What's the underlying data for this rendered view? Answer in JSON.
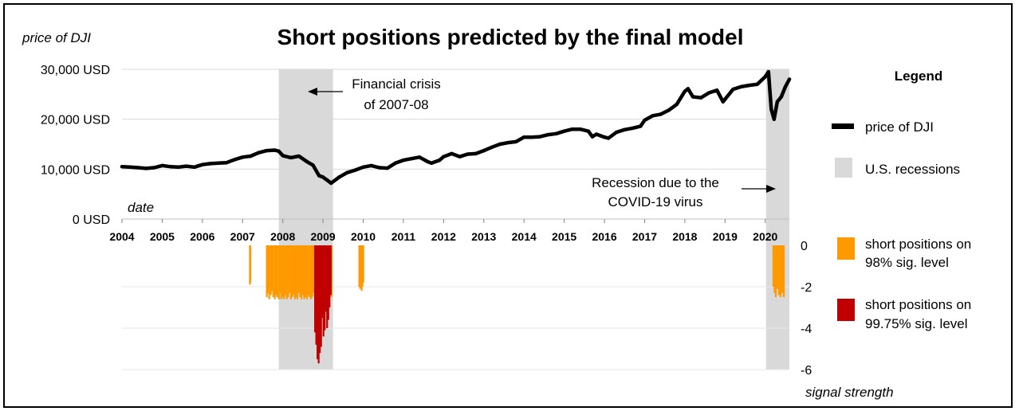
{
  "chart_data": {
    "type": "line",
    "title": "Short positions predicted by the final model",
    "colors": {
      "price": "#000000",
      "recession": "#d9d9d9",
      "short98": "#ff9900",
      "short9975": "#c00000",
      "grid": "#d9d9d9"
    },
    "price_panel": {
      "ylabel": "price of DJI",
      "xlabel": "date",
      "ylim": [
        0,
        30000
      ],
      "yticks": [
        {
          "value": 0,
          "label": "0 USD"
        },
        {
          "value": 10000,
          "label": "10,000 USD"
        },
        {
          "value": 20000,
          "label": "20,000 USD"
        },
        {
          "value": 30000,
          "label": "30,000 USD"
        }
      ],
      "xlim": [
        2004.0,
        2020.6
      ],
      "xtick_labels": [
        "2004",
        "2005",
        "2006",
        "2007",
        "2008",
        "2009",
        "2010",
        "2011",
        "2012",
        "2013",
        "2014",
        "2015",
        "2016",
        "2017",
        "2018",
        "2019",
        "2020"
      ],
      "series": {
        "name": "price of DJI",
        "x": [
          2004.0,
          2004.2,
          2004.4,
          2004.6,
          2004.8,
          2005.0,
          2005.2,
          2005.4,
          2005.6,
          2005.8,
          2006.0,
          2006.2,
          2006.4,
          2006.6,
          2006.8,
          2007.0,
          2007.2,
          2007.4,
          2007.6,
          2007.8,
          2007.9,
          2008.0,
          2008.2,
          2008.4,
          2008.6,
          2008.75,
          2008.9,
          2009.0,
          2009.1,
          2009.2,
          2009.4,
          2009.6,
          2009.8,
          2010.0,
          2010.2,
          2010.4,
          2010.6,
          2010.8,
          2011.0,
          2011.2,
          2011.4,
          2011.6,
          2011.7,
          2011.9,
          2012.0,
          2012.2,
          2012.4,
          2012.6,
          2012.8,
          2013.0,
          2013.2,
          2013.4,
          2013.6,
          2013.8,
          2014.0,
          2014.2,
          2014.4,
          2014.6,
          2014.8,
          2015.0,
          2015.2,
          2015.4,
          2015.6,
          2015.7,
          2015.8,
          2016.0,
          2016.1,
          2016.3,
          2016.5,
          2016.7,
          2016.9,
          2017.0,
          2017.2,
          2017.4,
          2017.6,
          2017.8,
          2018.0,
          2018.08,
          2018.2,
          2018.4,
          2018.6,
          2018.8,
          2018.95,
          2019.0,
          2019.2,
          2019.4,
          2019.6,
          2019.8,
          2020.0,
          2020.08,
          2020.15,
          2020.22,
          2020.3,
          2020.4,
          2020.5,
          2020.6
        ],
        "y": [
          10500,
          10400,
          10300,
          10150,
          10300,
          10700,
          10500,
          10400,
          10600,
          10400,
          10900,
          11100,
          11200,
          11300,
          11900,
          12400,
          12600,
          13300,
          13700,
          13800,
          13600,
          12700,
          12300,
          12600,
          11500,
          10800,
          8700,
          8400,
          7800,
          7200,
          8400,
          9300,
          9800,
          10400,
          10700,
          10300,
          10200,
          11200,
          11800,
          12100,
          12400,
          11500,
          11200,
          11800,
          12500,
          13100,
          12500,
          13000,
          13100,
          13700,
          14400,
          15000,
          15300,
          15500,
          16400,
          16400,
          16500,
          16900,
          17100,
          17600,
          18000,
          18000,
          17600,
          16500,
          17000,
          16400,
          16200,
          17400,
          17900,
          18200,
          18600,
          19800,
          20700,
          21000,
          21800,
          23000,
          25600,
          26100,
          24500,
          24300,
          25300,
          25800,
          23500,
          24000,
          26000,
          26500,
          26800,
          27000,
          28500,
          29500,
          22000,
          20000,
          23500,
          24500,
          26500,
          28000
        ]
      },
      "annotations": [
        {
          "text": "Financial crisis",
          "text2": "of 2007-08"
        },
        {
          "text": "Recession due to the",
          "text2": "COVID-19 virus"
        }
      ]
    },
    "recessions": [
      {
        "start": 2007.9,
        "end": 2009.25
      },
      {
        "start": 2020.02,
        "end": 2020.6
      }
    ],
    "signal_panel": {
      "ylabel": "signal strength",
      "ylim": [
        -6,
        0
      ],
      "yticks": [
        {
          "value": 0,
          "label": "0"
        },
        {
          "value": -2,
          "label": "-2"
        },
        {
          "value": -4,
          "label": "-4"
        },
        {
          "value": -6,
          "label": "-6"
        }
      ],
      "series": [
        {
          "name": "short positions on 98% sig. level",
          "x": [
            2007.18,
            2007.19,
            2007.6,
            2007.63,
            2007.66,
            2007.7,
            2007.73,
            2007.76,
            2007.8,
            2007.83,
            2007.86,
            2007.9,
            2007.93,
            2007.96,
            2008.0,
            2008.03,
            2008.06,
            2008.1,
            2008.13,
            2008.16,
            2008.2,
            2008.23,
            2008.26,
            2008.3,
            2008.33,
            2008.36,
            2008.4,
            2008.43,
            2008.46,
            2008.5,
            2008.53,
            2008.56,
            2008.6,
            2008.63,
            2008.66,
            2008.7,
            2008.73,
            2008.76,
            2008.9,
            2008.94,
            2008.98,
            2009.02,
            2009.06,
            2009.1,
            2009.14,
            2009.18,
            2009.21,
            2009.9,
            2009.92,
            2009.94,
            2009.96,
            2009.98,
            2010.0,
            2020.2,
            2020.23,
            2020.26,
            2020.3,
            2020.34,
            2020.38,
            2020.42,
            2020.46
          ],
          "values": [
            -1.9,
            -1.8,
            -2.5,
            -2.3,
            -2.6,
            -2.4,
            -2.2,
            -2.5,
            -2.6,
            -2.4,
            -2.5,
            -2.6,
            -2.3,
            -2.6,
            -2.5,
            -2.6,
            -2.4,
            -2.6,
            -2.5,
            -2.3,
            -2.6,
            -2.5,
            -2.4,
            -2.6,
            -2.5,
            -2.6,
            -2.3,
            -2.5,
            -2.6,
            -2.4,
            -2.6,
            -2.5,
            -2.6,
            -2.4,
            -2.5,
            -2.6,
            -2.5,
            -2.3,
            -2.6,
            -2.5,
            -2.6,
            -2.4,
            -2.6,
            -2.5,
            -2.6,
            -2.4,
            -2.5,
            -2.0,
            -2.1,
            -1.9,
            -2.2,
            -2.0,
            -1.8,
            -2.0,
            -2.3,
            -2.5,
            -2.1,
            -2.4,
            -2.5,
            -2.3,
            -2.5
          ]
        },
        {
          "name": "short positions on 99.75% sig. level",
          "x": [
            2008.8,
            2008.83,
            2008.86,
            2008.89,
            2008.92,
            2008.95,
            2008.98,
            2009.01,
            2009.04,
            2009.07,
            2009.1,
            2009.13,
            2009.16,
            2009.19
          ],
          "values": [
            -4.2,
            -4.8,
            -5.5,
            -5.7,
            -5.2,
            -4.9,
            -3.5,
            -4.4,
            -4.1,
            -3.2,
            -4.0,
            -3.6,
            -3.0,
            -2.4
          ]
        }
      ]
    },
    "legend": {
      "title": "Legend",
      "items": [
        {
          "key": "price",
          "label": "price of DJI"
        },
        {
          "key": "recession",
          "label": "U.S. recessions"
        },
        {
          "key": "short98",
          "label": "short positions on",
          "label2": "98% sig. level"
        },
        {
          "key": "short9975",
          "label": "short positions on",
          "label2": "99.75% sig. level"
        }
      ]
    }
  }
}
